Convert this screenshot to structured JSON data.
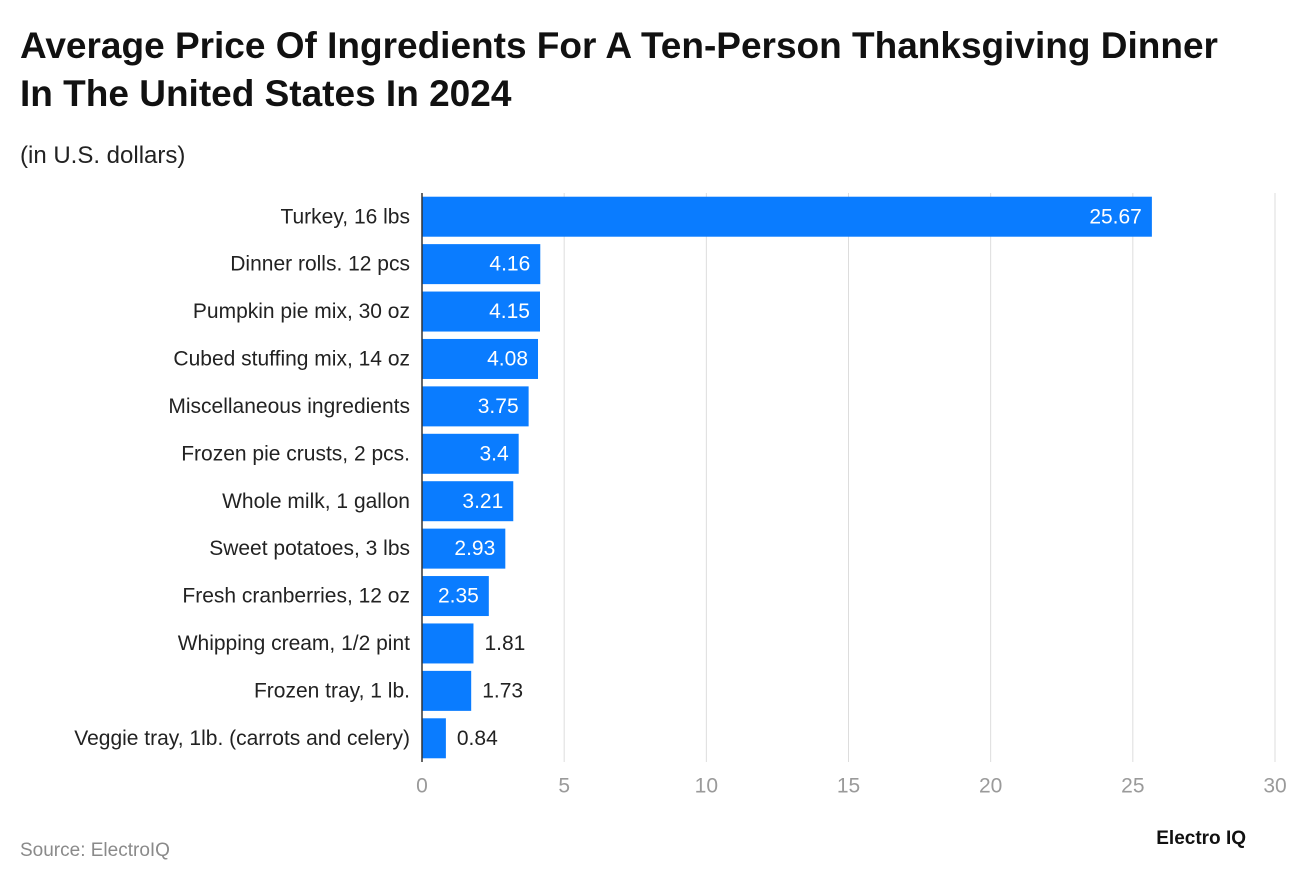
{
  "chart_data": {
    "type": "barh",
    "title": "Average Price Of Ingredients For A Ten-Person Thanksgiving Dinner In The United States In 2024",
    "subtitle": "(in U.S. dollars)",
    "categories": [
      "Turkey, 16 lbs",
      "Dinner rolls. 12 pcs",
      "Pumpkin pie mix, 30 oz",
      "Cubed stuffing mix, 14 oz",
      "Miscellaneous ingredients",
      "Frozen pie crusts, 2 pcs.",
      "Whole milk, 1 gallon",
      "Sweet potatoes, 3 lbs",
      "Fresh cranberries, 12 oz",
      "Whipping cream, 1/2 pint",
      "Frozen tray, 1 lb.",
      "Veggie tray, 1lb. (carrots and celery)"
    ],
    "values": [
      25.67,
      4.16,
      4.15,
      4.08,
      3.75,
      3.4,
      3.21,
      2.93,
      2.35,
      1.81,
      1.73,
      0.84
    ],
    "color": "#0a7cff",
    "xlim": [
      0,
      30
    ],
    "xticks": [
      0,
      5,
      10,
      15,
      20,
      25,
      30
    ],
    "grid": true,
    "source": "Source: ElectroIQ",
    "brand": "Electro IQ"
  }
}
